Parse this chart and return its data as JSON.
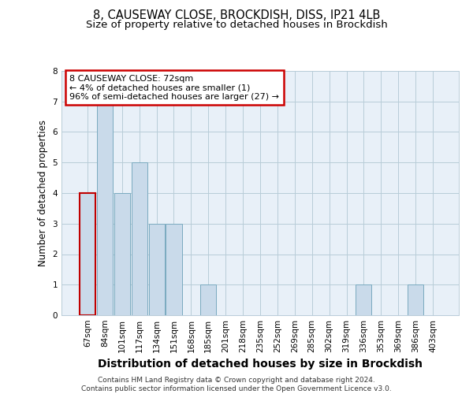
{
  "title1": "8, CAUSEWAY CLOSE, BROCKDISH, DISS, IP21 4LB",
  "title2": "Size of property relative to detached houses in Brockdish",
  "xlabel": "Distribution of detached houses by size in Brockdish",
  "ylabel": "Number of detached properties",
  "categories": [
    "67sqm",
    "84sqm",
    "101sqm",
    "117sqm",
    "134sqm",
    "151sqm",
    "168sqm",
    "185sqm",
    "201sqm",
    "218sqm",
    "235sqm",
    "252sqm",
    "269sqm",
    "285sqm",
    "302sqm",
    "319sqm",
    "336sqm",
    "353sqm",
    "369sqm",
    "386sqm",
    "403sqm"
  ],
  "values": [
    4,
    7,
    4,
    5,
    3,
    3,
    0,
    1,
    0,
    0,
    0,
    0,
    0,
    0,
    0,
    0,
    1,
    0,
    0,
    1,
    0
  ],
  "bar_color": "#c9daea",
  "bar_edge_color": "#7aaabf",
  "highlight_edge_color": "#c00000",
  "annotation_text": "8 CAUSEWAY CLOSE: 72sqm\n← 4% of detached houses are smaller (1)\n96% of semi-detached houses are larger (27) →",
  "annotation_box_color": "white",
  "annotation_box_edge_color": "#cc0000",
  "ylim": [
    0,
    8
  ],
  "yticks": [
    0,
    1,
    2,
    3,
    4,
    5,
    6,
    7,
    8
  ],
  "grid_color": "#b8ccd8",
  "bg_color": "#e8f0f8",
  "footer": "Contains HM Land Registry data © Crown copyright and database right 2024.\nContains public sector information licensed under the Open Government Licence v3.0.",
  "title1_fontsize": 10.5,
  "title2_fontsize": 9.5,
  "xlabel_fontsize": 10,
  "ylabel_fontsize": 8.5,
  "tick_fontsize": 7.5,
  "annotation_fontsize": 8,
  "footer_fontsize": 6.5
}
